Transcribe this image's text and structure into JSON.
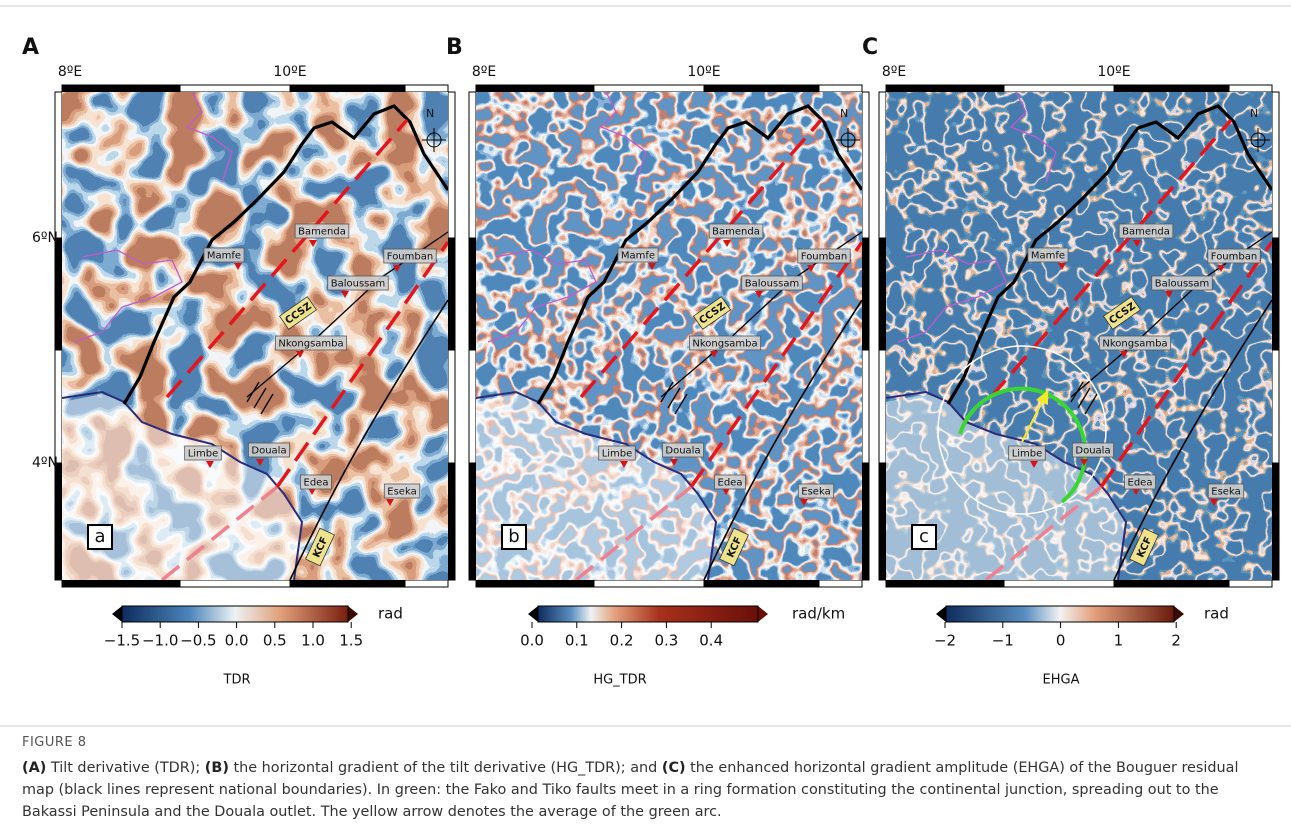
{
  "figure": {
    "panels": [
      {
        "letter": "A",
        "inset_label": "a",
        "lon_labels": [
          "8ºE",
          "10ºE"
        ],
        "lat_labels": [
          "6ºN",
          "4ºN"
        ],
        "north": "N",
        "places": [
          "Bamenda",
          "Mamfe",
          "Foumban",
          "Baloussam",
          "Nkongsamba",
          "Limbe",
          "Douala",
          "Edea",
          "Eseka"
        ],
        "faults": [
          "CCSZ",
          "KCF"
        ],
        "colorbar": {
          "ticks": [
            "−1.5",
            "−1.0",
            "−0.5",
            "0.0",
            "0.5",
            "1.0",
            "1.5"
          ],
          "unit": "rad",
          "title": "TDR"
        }
      },
      {
        "letter": "B",
        "inset_label": "b",
        "lon_labels": [
          "8ºE",
          "10ºE"
        ],
        "north": "N",
        "places": [
          "Bamenda",
          "Mamfe",
          "Foumban",
          "Baloussam",
          "Nkongsamba",
          "Limbe",
          "Douala",
          "Edea",
          "Eseka"
        ],
        "faults": [
          "CCSZ",
          "KCF"
        ],
        "colorbar": {
          "ticks": [
            "0.0",
            "0.1",
            "0.2",
            "0.3",
            "0.4"
          ],
          "unit": "rad/km",
          "title": "HG_TDR"
        }
      },
      {
        "letter": "C",
        "inset_label": "c",
        "lon_labels": [
          "8ºE",
          "10ºE"
        ],
        "north": "N",
        "places": [
          "Bamenda",
          "Mamfe",
          "Foumban",
          "Baloussam",
          "Nkongsamba",
          "Limbe",
          "Douala",
          "Edea",
          "Eseka"
        ],
        "faults": [
          "CCSZ",
          "KCF"
        ],
        "colorbar": {
          "ticks": [
            "−2",
            "−1",
            "0",
            "1",
            "2"
          ],
          "unit": "rad",
          "title": "EHGA"
        }
      }
    ],
    "caption": {
      "label": "FIGURE 8",
      "segments": [
        "(A)",
        " Tilt derivative (TDR); ",
        "(B)",
        " the horizontal gradient of the tilt derivative (HG_TDR); and ",
        "(C)",
        " the enhanced horizontal gradient amplitude (EHGA) of the Bouguer residual map (black lines represent national boundaries). In green: the Fako and Tiko faults meet in a ring formation constituting the continental junction, spreading out to the Bakassi Peninsula and the Douala outlet. The yellow arrow denotes the average of the green arc."
      ]
    }
  }
}
